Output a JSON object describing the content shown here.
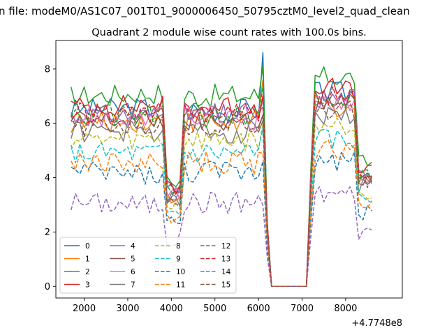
{
  "figure": {
    "suptitle": "n file: modeM0/AS1C07_001T01_9000006450_50795cztM0_level2_quad_clean",
    "offset_label": "+4.7748e8"
  },
  "chart_data": {
    "type": "line",
    "title": "Quadrant 2 module wise count rates with 100.0s bins.",
    "xlabel": "",
    "ylabel": "",
    "xlim": [
      1350,
      9300
    ],
    "ylim": [
      -0.43,
      9.05
    ],
    "x_ticks": [
      2000,
      3000,
      4000,
      5000,
      6000,
      7000,
      8000
    ],
    "x_tick_labels": [
      "2000",
      "3000",
      "4000",
      "5000",
      "6000",
      "7000",
      "8000"
    ],
    "y_ticks": [
      0,
      2,
      4,
      6,
      8
    ],
    "y_tick_labels": [
      "0",
      "2",
      "4",
      "6",
      "8"
    ],
    "legend_position": "lower-left",
    "legend_columns": 4,
    "segments": {
      "x_start": 1700,
      "x_step": 100,
      "x_end": 8600,
      "drop_start": 6100,
      "zero_start": 6300,
      "zero_end": 7100,
      "rise_end": 7300
    },
    "series": [
      {
        "name": "0",
        "color": "#1f77b4",
        "dash": "solid",
        "base": 6.5,
        "trend": 0.05,
        "spike_6100": 8.6
      },
      {
        "name": "1",
        "color": "#ff7f0e",
        "dash": "solid",
        "base": 6.0,
        "trend": 0.05,
        "spike_6100": 7.6
      },
      {
        "name": "2",
        "color": "#2ca02c",
        "dash": "solid",
        "base": 7.0,
        "trend": 0.05,
        "spike_6100": 8.1
      },
      {
        "name": "3",
        "color": "#d62728",
        "dash": "solid",
        "base": 6.6,
        "trend": 0.05,
        "spike_6100": 7.0
      },
      {
        "name": "4",
        "color": "#9467bd",
        "dash": "solid",
        "base": 6.3,
        "trend": 0.0,
        "spike_6100": 6.6
      },
      {
        "name": "5",
        "color": "#8c564b",
        "dash": "solid",
        "base": 6.1,
        "trend": 0.0,
        "spike_6100": 6.3
      },
      {
        "name": "6",
        "color": "#e377c2",
        "dash": "solid",
        "base": 6.2,
        "trend": 0.0,
        "spike_6100": 6.8
      },
      {
        "name": "7",
        "color": "#7f7f7f",
        "dash": "solid",
        "base": 5.7,
        "trend": 0.0,
        "spike_6100": 6.1
      },
      {
        "name": "8",
        "color": "#bcbd22",
        "dash": "dashed",
        "base": 5.4,
        "trend": 0.0,
        "spike_6100": 6.0
      },
      {
        "name": "9",
        "color": "#17becf",
        "dash": "dashed",
        "base": 4.9,
        "trend": 0.0,
        "spike_6100": 5.8
      },
      {
        "name": "10",
        "color": "#1f77b4",
        "dash": "dashed",
        "base": 4.2,
        "trend": -0.05,
        "spike_6100": 4.6
      },
      {
        "name": "11",
        "color": "#ff7f0e",
        "dash": "dashed",
        "base": 4.55,
        "trend": 0.0,
        "spike_6100": 4.9
      },
      {
        "name": "12",
        "color": "#2ca02c",
        "dash": "dashed",
        "base": 6.3,
        "trend": 0.0,
        "spike_6100": 7.3
      },
      {
        "name": "13",
        "color": "#d62728",
        "dash": "dashed",
        "base": 6.4,
        "trend": 0.0,
        "spike_6100": 7.0
      },
      {
        "name": "14",
        "color": "#9467bd",
        "dash": "dashed",
        "base": 3.1,
        "trend": -0.05,
        "spike_6100": 3.0
      },
      {
        "name": "15",
        "color": "#8c564b",
        "dash": "dashed",
        "base": 5.9,
        "trend": 0.0,
        "spike_6100": 6.3
      }
    ]
  }
}
